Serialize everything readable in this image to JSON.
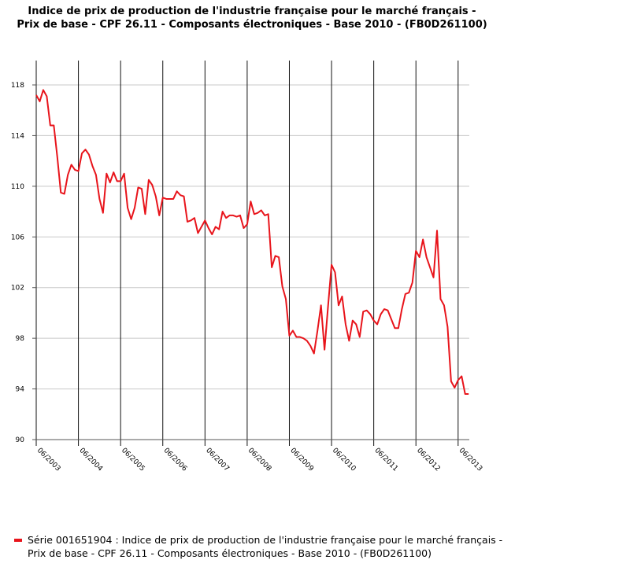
{
  "title": {
    "line1": "Indice de prix de production de l'industrie française pour le marché français -",
    "line2": "Prix de base - CPF 26.11 - Composants électroniques - Base 2010 - (FB0D261100)"
  },
  "legend": {
    "text": "Série 001651904 : Indice de prix de production de l'industrie française pour le marché français - Prix de base - CPF 26.11 - Composants électroniques - Base 2010 - (FB0D261100)",
    "color": "#e8141b"
  },
  "chart_data": {
    "type": "line",
    "title": "Indice de prix de production de l'industrie française pour le marché français - Prix de base - CPF 26.11 - Composants électroniques - Base 2010 - (FB0D261100)",
    "xlabel": "",
    "ylabel": "",
    "ylim": [
      90,
      118
    ],
    "yticks": [
      90,
      94,
      98,
      102,
      106,
      110,
      114,
      118
    ],
    "x_tick_labels": [
      "06/2003",
      "06/2004",
      "06/2005",
      "06/2006",
      "06/2007",
      "06/2008",
      "06/2009",
      "06/2010",
      "06/2011",
      "06/2012",
      "06/2013"
    ],
    "grid": true,
    "legend_position": "bottom",
    "x_start": "06/2003",
    "x_step": "month",
    "series": [
      {
        "name": "Série 001651904 : Indice de prix de production de l'industrie française pour le marché français - Prix de base - CPF 26.11 - Composants électroniques - Base 2010 - (FB0D261100)",
        "color": "#e8141b",
        "values": [
          117.2,
          116.7,
          117.6,
          117.1,
          114.8,
          114.8,
          112.3,
          109.5,
          109.4,
          110.9,
          111.7,
          111.3,
          111.2,
          112.6,
          112.9,
          112.5,
          111.6,
          110.9,
          109.0,
          107.9,
          111.0,
          110.3,
          111.1,
          110.4,
          110.4,
          111.0,
          108.3,
          107.4,
          108.3,
          109.9,
          109.8,
          107.8,
          110.5,
          110.1,
          109.2,
          107.7,
          109.1,
          109.0,
          109.0,
          109.0,
          109.6,
          109.3,
          109.2,
          107.2,
          107.3,
          107.5,
          106.3,
          106.8,
          107.3,
          106.7,
          106.2,
          106.8,
          106.6,
          108.0,
          107.5,
          107.7,
          107.7,
          107.6,
          107.7,
          106.7,
          107.0,
          108.8,
          107.8,
          107.9,
          108.1,
          107.7,
          107.8,
          103.6,
          104.5,
          104.4,
          102.1,
          101.1,
          98.2,
          98.6,
          98.1,
          98.1,
          98.0,
          97.8,
          97.4,
          96.8,
          98.6,
          100.6,
          97.1,
          100.5,
          103.8,
          103.2,
          100.6,
          101.3,
          99.1,
          97.8,
          99.4,
          99.1,
          98.1,
          100.1,
          100.2,
          99.9,
          99.4,
          99.1,
          99.9,
          100.3,
          100.2,
          99.5,
          98.8,
          98.8,
          100.3,
          101.5,
          101.6,
          102.4,
          104.9,
          104.4,
          105.8,
          104.4,
          103.6,
          102.8,
          106.5,
          101.1,
          100.6,
          98.9,
          94.6,
          94.1,
          94.7,
          95.0,
          93.6,
          93.6
        ]
      }
    ]
  }
}
